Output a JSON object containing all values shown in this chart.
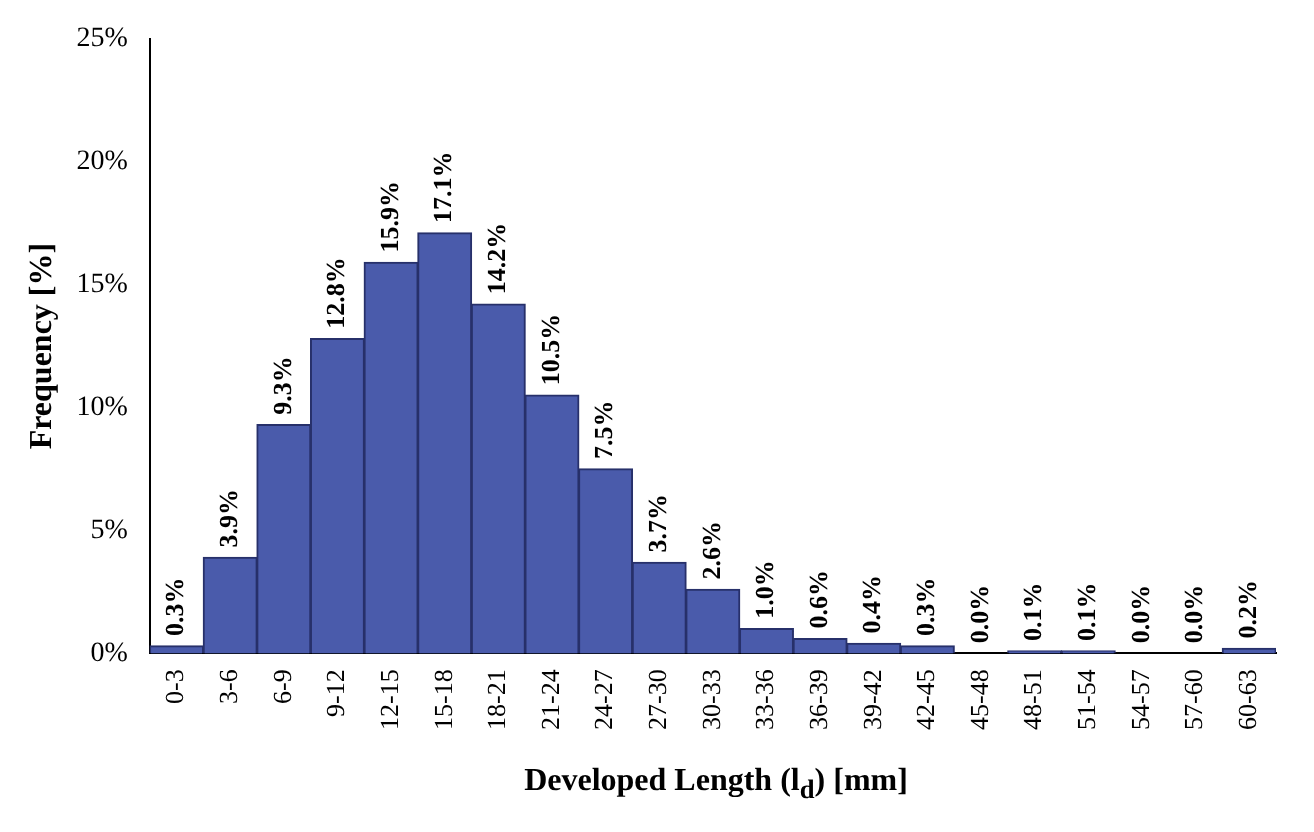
{
  "chart_data": {
    "type": "bar",
    "xlabel": "Developed Length (l$_{d}$) [mm]",
    "ylabel": "Frequency [%]",
    "categories": [
      "0-3",
      "3-6",
      "6-9",
      "9-12",
      "12-15",
      "15-18",
      "18-21",
      "21-24",
      "24-27",
      "27-30",
      "30-33",
      "33-36",
      "36-39",
      "39-42",
      "42-45",
      "45-48",
      "48-51",
      "51-54",
      "54-57",
      "57-60",
      "60-63"
    ],
    "values": [
      0.3,
      3.9,
      9.3,
      12.8,
      15.9,
      17.1,
      14.2,
      10.5,
      7.5,
      3.7,
      2.6,
      1.0,
      0.6,
      0.4,
      0.3,
      0.0,
      0.1,
      0.1,
      0.0,
      0.0,
      0.2
    ],
    "value_labels": [
      "0.3%",
      "3.9%",
      "9.3%",
      "12.8%",
      "15.9%",
      "17.1%",
      "14.2%",
      "10.5%",
      "7.5%",
      "3.7%",
      "2.6%",
      "1.0%",
      "0.6%",
      "0.4%",
      "0.3%",
      "0.0%",
      "0.1%",
      "0.1%",
      "0.0%",
      "0.0%",
      "0.2%"
    ],
    "color": "#4a5bab",
    "ylim": [
      0,
      25
    ],
    "yticks": [
      {
        "value": 0,
        "label": "0%"
      },
      {
        "value": 5,
        "label": "5%"
      },
      {
        "value": 10,
        "label": "10%"
      },
      {
        "value": 15,
        "label": "15%"
      },
      {
        "value": 20,
        "label": "20%"
      },
      {
        "value": 25,
        "label": "25%"
      }
    ],
    "grid": false,
    "legend": false
  }
}
